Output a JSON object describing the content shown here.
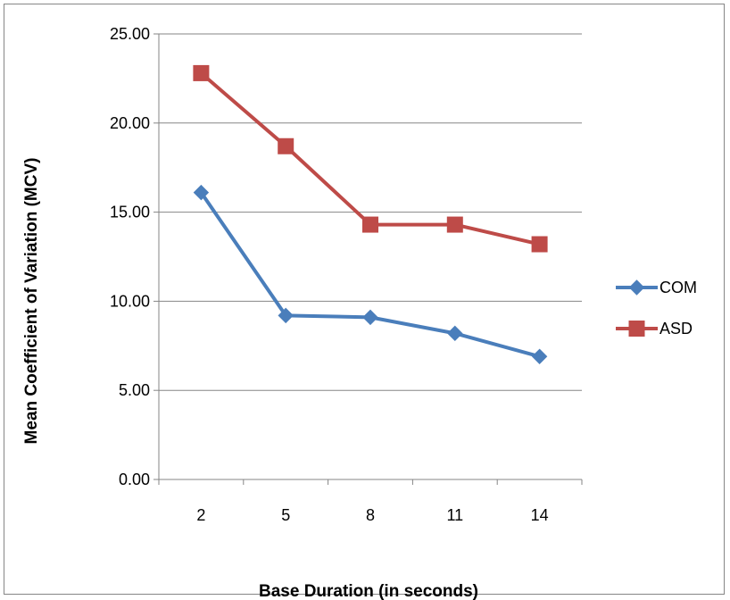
{
  "chart_data": {
    "type": "line",
    "categories": [
      "2",
      "5",
      "8",
      "11",
      "14"
    ],
    "series": [
      {
        "name": "COM",
        "values": [
          16.1,
          9.2,
          9.1,
          8.2,
          6.9
        ],
        "color": "#4a7ebb",
        "marker": "diamond"
      },
      {
        "name": "ASD",
        "values": [
          22.8,
          18.7,
          14.3,
          14.3,
          13.2
        ],
        "color": "#be4b48",
        "marker": "square"
      }
    ],
    "y_ticks": [
      "0.00",
      "5.00",
      "10.00",
      "15.00",
      "20.00",
      "25.00"
    ],
    "ylim": [
      0,
      25
    ],
    "xlabel": "Base Duration (in seconds)",
    "ylabel": "Mean Coefficient of Variation (MCV)",
    "grid": true,
    "legend_position": "right"
  }
}
